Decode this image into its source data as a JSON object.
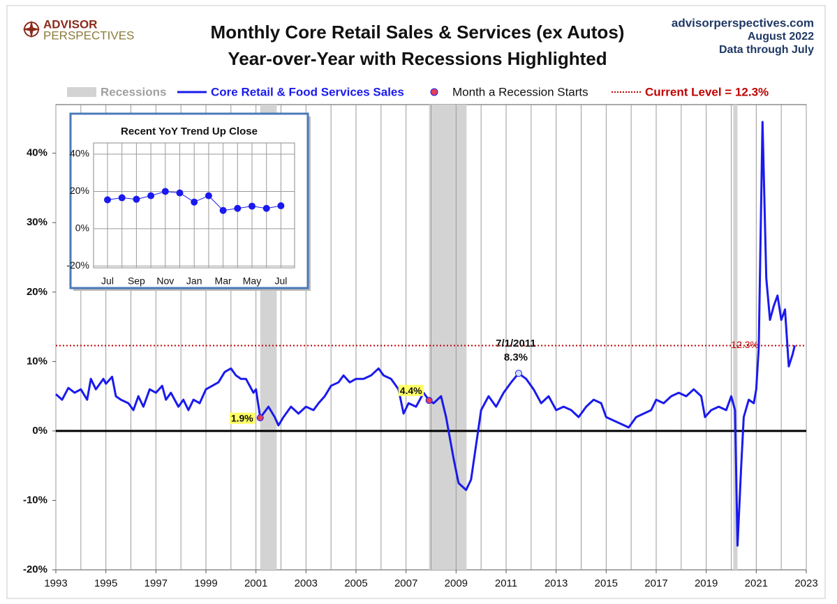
{
  "header": {
    "logo": [
      "ADVISOR",
      "PERSPECTIVES"
    ],
    "source": [
      "advisorperspectives.com",
      "August 2022",
      "Data through July"
    ]
  },
  "chart_data": [
    {
      "type": "line",
      "title": "Monthly Core Retail Sales & Services (ex Autos)",
      "subtitle": "Year-over-Year with Recessions Highlighted",
      "xlim": [
        1993,
        2023
      ],
      "xticks": [
        1993,
        1995,
        1997,
        1999,
        2001,
        2003,
        2005,
        2007,
        2009,
        2011,
        2013,
        2015,
        2017,
        2019,
        2021,
        2023
      ],
      "xminor": [
        1994,
        1996,
        1998,
        2000,
        2002,
        2004,
        2006,
        2008,
        2010,
        2012,
        2014,
        2016,
        2018,
        2020,
        2022
      ],
      "ylim": [
        -20,
        47
      ],
      "yticks": [
        {
          "value": -20,
          "label": "-20%"
        },
        {
          "value": -10,
          "label": "-10%"
        },
        {
          "value": 0,
          "label": "0%"
        },
        {
          "value": 10,
          "label": "10%"
        },
        {
          "value": 20,
          "label": "20%"
        },
        {
          "value": 30,
          "label": "30%"
        },
        {
          "value": 40,
          "label": "40%"
        }
      ],
      "grid": true,
      "recessions": {
        "name": "Recessions",
        "color": "#d3d3d3",
        "spans": [
          [
            2001.17,
            2001.83
          ],
          [
            2007.92,
            2009.42
          ],
          [
            2020.08,
            2020.25
          ]
        ]
      },
      "series": [
        {
          "name": "Core Retail & Food Services Sales",
          "color": "#1a1aee",
          "x": [
            1993.0,
            1993.25,
            1993.5,
            1993.75,
            1994.0,
            1994.25,
            1994.4,
            1994.6,
            1994.9,
            1995.0,
            1995.25,
            1995.4,
            1995.6,
            1995.9,
            1996.1,
            1996.3,
            1996.5,
            1996.75,
            1997.0,
            1997.25,
            1997.4,
            1997.6,
            1997.9,
            1998.1,
            1998.3,
            1998.5,
            1998.75,
            1999.0,
            1999.25,
            1999.5,
            1999.75,
            2000.0,
            2000.2,
            2000.4,
            2000.6,
            2000.9,
            2001.0,
            2001.17,
            2001.5,
            2001.75,
            2001.9,
            2002.1,
            2002.4,
            2002.7,
            2003.0,
            2003.3,
            2003.5,
            2003.75,
            2004.0,
            2004.3,
            2004.5,
            2004.75,
            2005.0,
            2005.3,
            2005.6,
            2005.9,
            2006.1,
            2006.4,
            2006.7,
            2006.9,
            2007.1,
            2007.4,
            2007.7,
            2007.92,
            2008.1,
            2008.4,
            2008.6,
            2008.9,
            2009.1,
            2009.4,
            2009.6,
            2009.8,
            2010.0,
            2010.3,
            2010.6,
            2010.9,
            2011.2,
            2011.5,
            2011.8,
            2012.1,
            2012.4,
            2012.7,
            2013.0,
            2013.3,
            2013.6,
            2013.9,
            2014.2,
            2014.5,
            2014.8,
            2015.0,
            2015.3,
            2015.6,
            2015.9,
            2016.2,
            2016.5,
            2016.8,
            2017.0,
            2017.3,
            2017.6,
            2017.9,
            2018.2,
            2018.5,
            2018.8,
            2018.95,
            2019.2,
            2019.5,
            2019.8,
            2020.0,
            2020.15,
            2020.25,
            2020.4,
            2020.5,
            2020.7,
            2020.9,
            2021.0,
            2021.1,
            2021.25,
            2021.4,
            2021.55,
            2021.7,
            2021.85,
            2022.0,
            2022.15,
            2022.3,
            2022.45,
            2022.54
          ],
          "values": [
            5.3,
            4.5,
            6.2,
            5.5,
            6.0,
            4.5,
            7.5,
            6.0,
            7.5,
            6.8,
            7.8,
            5.0,
            4.5,
            4.0,
            3.0,
            5.0,
            3.5,
            6.0,
            5.5,
            6.5,
            4.5,
            5.5,
            3.5,
            4.5,
            3.0,
            4.5,
            4.0,
            6.0,
            6.5,
            7.0,
            8.5,
            9.0,
            8.0,
            7.5,
            7.5,
            5.5,
            6.0,
            1.9,
            3.5,
            2.0,
            0.8,
            2.0,
            3.5,
            2.5,
            3.5,
            3.0,
            4.0,
            5.0,
            6.5,
            7.0,
            8.0,
            7.0,
            7.5,
            7.5,
            8.0,
            9.0,
            8.0,
            7.5,
            6.0,
            2.5,
            4.0,
            3.5,
            5.5,
            4.4,
            4.0,
            5.0,
            2.0,
            -4.0,
            -7.5,
            -8.5,
            -7.0,
            -2.0,
            3.0,
            5.0,
            3.5,
            5.5,
            7.0,
            8.3,
            7.5,
            6.0,
            4.0,
            5.0,
            3.0,
            3.5,
            3.0,
            2.0,
            3.5,
            4.5,
            4.0,
            2.0,
            1.5,
            1.0,
            0.5,
            2.0,
            2.5,
            3.0,
            4.5,
            4.0,
            5.0,
            5.5,
            5.0,
            6.0,
            5.0,
            2.0,
            3.0,
            3.5,
            3.0,
            5.0,
            3.0,
            -16.5,
            -5.0,
            2.0,
            4.5,
            4.0,
            6.0,
            12.0,
            44.5,
            22.0,
            16.0,
            18.0,
            19.5,
            16.0,
            17.5,
            9.3,
            11.0,
            12.3
          ]
        }
      ],
      "recession_starts": {
        "name": "Month a Recession Starts",
        "color": "#e0405a",
        "x": [
          2001.17,
          2007.92
        ],
        "values": [
          1.9,
          4.4
        ],
        "value_labels": [
          "1.9%",
          "4.4%"
        ]
      },
      "annotation": {
        "date": "7/1/2011",
        "x": 2011.5,
        "value": 8.3,
        "label": "8.3%"
      },
      "current_level": {
        "name": "Current Level = 12.3%",
        "value": 12.3,
        "label": "12.3%",
        "color": "#c00000"
      }
    },
    {
      "type": "line",
      "title": "Recent  YoY Trend Up Close",
      "categories": [
        "Jul",
        null,
        "Sep",
        null,
        "Nov",
        null,
        "Jan",
        null,
        "Mar",
        null,
        "May",
        null,
        "Jul"
      ],
      "values": [
        15.5,
        16.6,
        15.8,
        17.7,
        20.0,
        19.2,
        14.3,
        17.7,
        9.8,
        10.9,
        12.1,
        10.9,
        12.3
      ],
      "color": "#1a1aee",
      "ylim": [
        -21,
        46
      ],
      "yticks": [
        {
          "value": -20,
          "label": "-20%"
        },
        {
          "value": 0,
          "label": "0%"
        },
        {
          "value": 20,
          "label": "20%"
        },
        {
          "value": 40,
          "label": "40%"
        }
      ],
      "grid": true
    }
  ]
}
